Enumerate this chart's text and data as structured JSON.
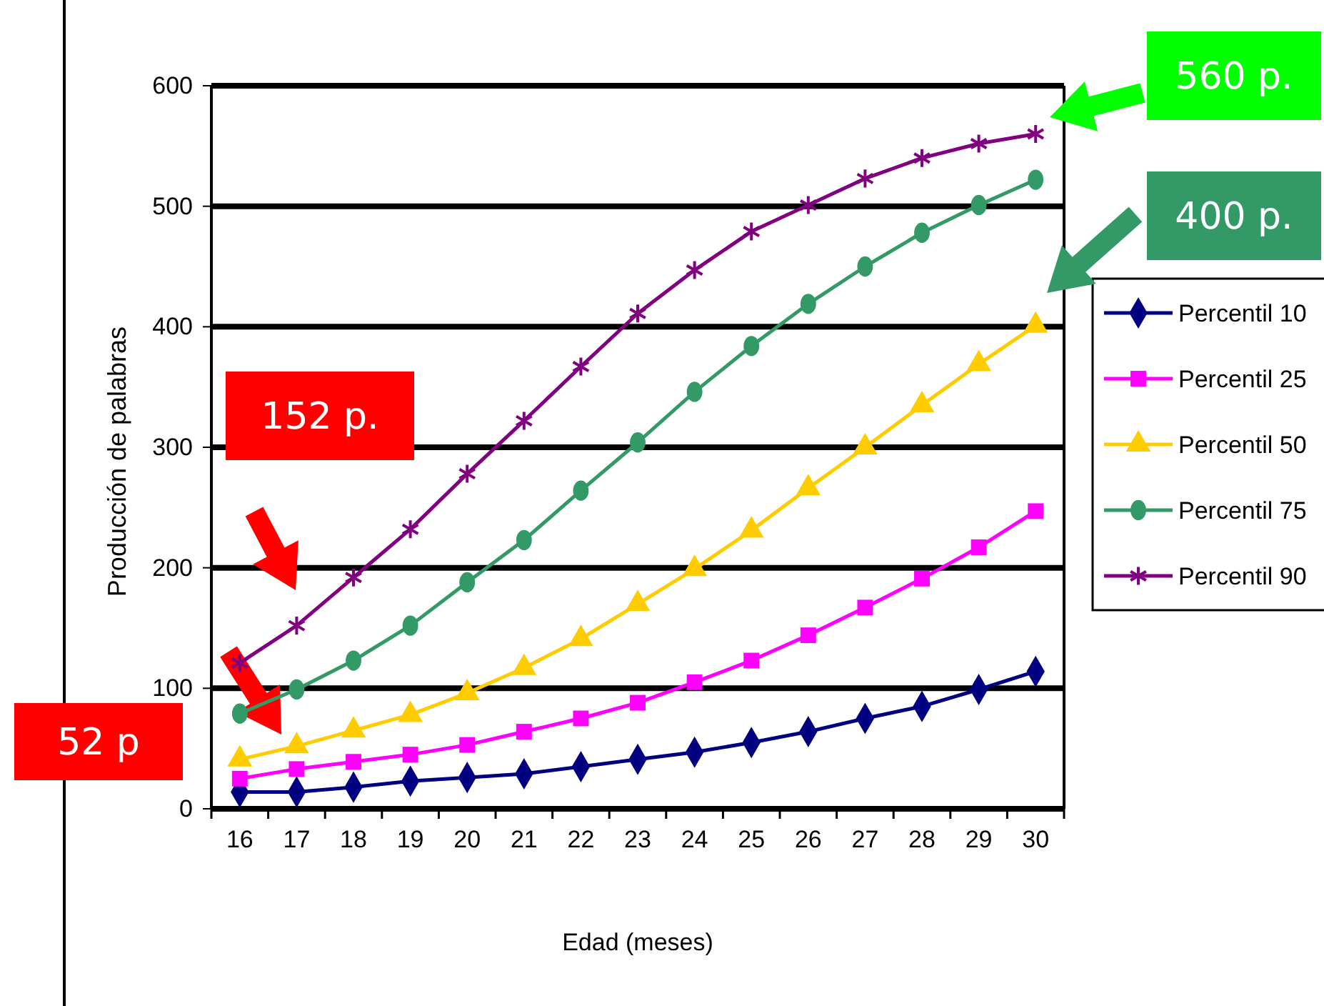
{
  "chart_data": {
    "type": "line",
    "xlabel": "Edad (meses)",
    "ylabel": "Producción de palabras",
    "categories": [
      "16",
      "17",
      "18",
      "19",
      "20",
      "21",
      "22",
      "23",
      "24",
      "25",
      "26",
      "27",
      "28",
      "29",
      "30"
    ],
    "ylim": [
      0,
      600
    ],
    "yticks": [
      0,
      100,
      200,
      300,
      400,
      500,
      600
    ],
    "grid": "y",
    "legend": "right",
    "series": [
      {
        "name": "Percentil 10",
        "color": "#000080",
        "marker": "diamond",
        "values": [
          14,
          14,
          18,
          23,
          26,
          29,
          35,
          41,
          47,
          55,
          64,
          75,
          85,
          99,
          114
        ]
      },
      {
        "name": "Percentil 25",
        "color": "#ff00ff",
        "marker": "square",
        "values": [
          25,
          33,
          39,
          45,
          53,
          64,
          75,
          88,
          105,
          123,
          144,
          167,
          191,
          217,
          247
        ]
      },
      {
        "name": "Percentil 50",
        "color": "#ffcc00",
        "marker": "triangle",
        "values": [
          41,
          52,
          65,
          78,
          96,
          117,
          141,
          170,
          199,
          231,
          266,
          300,
          335,
          369,
          401
        ]
      },
      {
        "name": "Percentil 75",
        "color": "#339966",
        "marker": "circle",
        "values": [
          79,
          99,
          123,
          152,
          188,
          223,
          264,
          304,
          346,
          384,
          419,
          450,
          478,
          501,
          522
        ]
      },
      {
        "name": "Percentil 90",
        "color": "#800080",
        "marker": "cross",
        "values": [
          121,
          152,
          192,
          232,
          278,
          322,
          367,
          411,
          447,
          479,
          501,
          523,
          540,
          552,
          560
        ]
      }
    ],
    "annotations": [
      "560 p.",
      "400 p.",
      "152 p.",
      "52 p"
    ]
  }
}
